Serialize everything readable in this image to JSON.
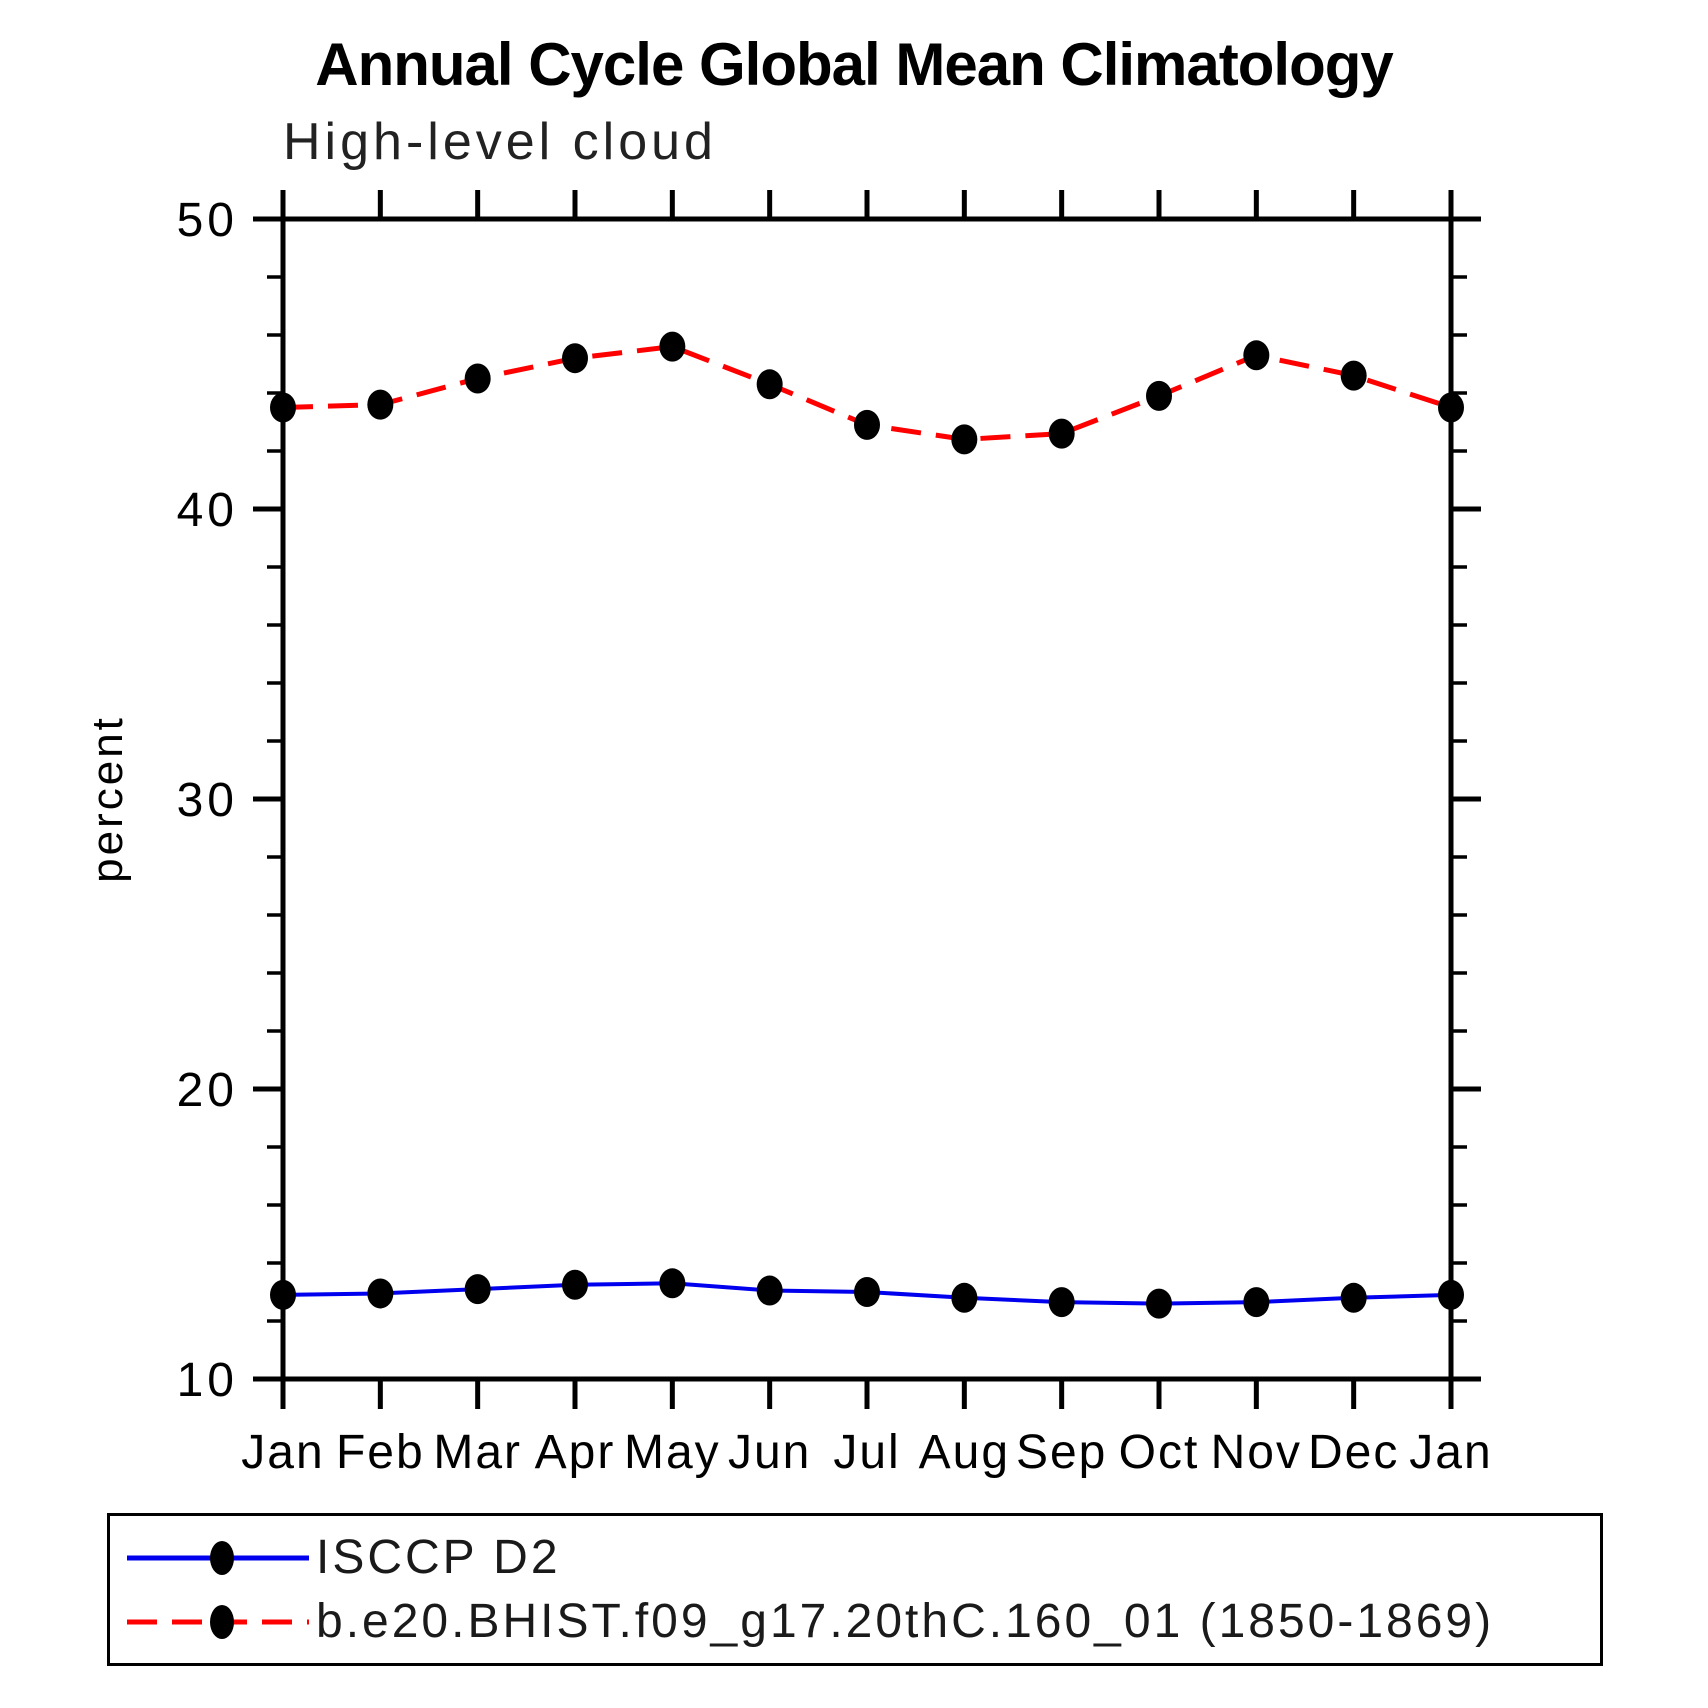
{
  "header": {
    "title": "Annual Cycle Global Mean Climatology",
    "subtitle": "High-level cloud"
  },
  "chart_data": {
    "type": "line",
    "title": "Annual Cycle Global Mean Climatology",
    "subtitle": "High-level cloud",
    "xlabel": "",
    "ylabel": "percent",
    "categories": [
      "Jan",
      "Feb",
      "Mar",
      "Apr",
      "May",
      "Jun",
      "Jul",
      "Aug",
      "Sep",
      "Oct",
      "Nov",
      "Dec",
      "Jan"
    ],
    "ylim": [
      10,
      50
    ],
    "y_major_ticks": [
      10,
      20,
      30,
      40,
      50
    ],
    "y_tick_labels": [
      "10",
      "20",
      "30",
      "40",
      "50"
    ],
    "y_minor_step": 2,
    "grid": false,
    "legend_position": "bottom",
    "marker": "filled-black-dot",
    "series": [
      {
        "name": "ISCCP D2",
        "color": "#0000ee",
        "line_style": "solid",
        "values": [
          12.9,
          12.95,
          13.1,
          13.25,
          13.3,
          13.05,
          13.0,
          12.8,
          12.65,
          12.6,
          12.65,
          12.8,
          12.9
        ]
      },
      {
        "name": "b.e20.BHIST.f09_g17.20thC.160_01 (1850-1869)",
        "color": "#ff0000",
        "line_style": "dashed",
        "values": [
          43.5,
          43.6,
          44.5,
          45.2,
          45.6,
          44.3,
          42.9,
          42.4,
          42.6,
          43.9,
          45.3,
          44.6,
          43.5
        ]
      }
    ],
    "colors": {
      "axis": "#000000",
      "marker": "#000000",
      "text": "#000000"
    }
  }
}
